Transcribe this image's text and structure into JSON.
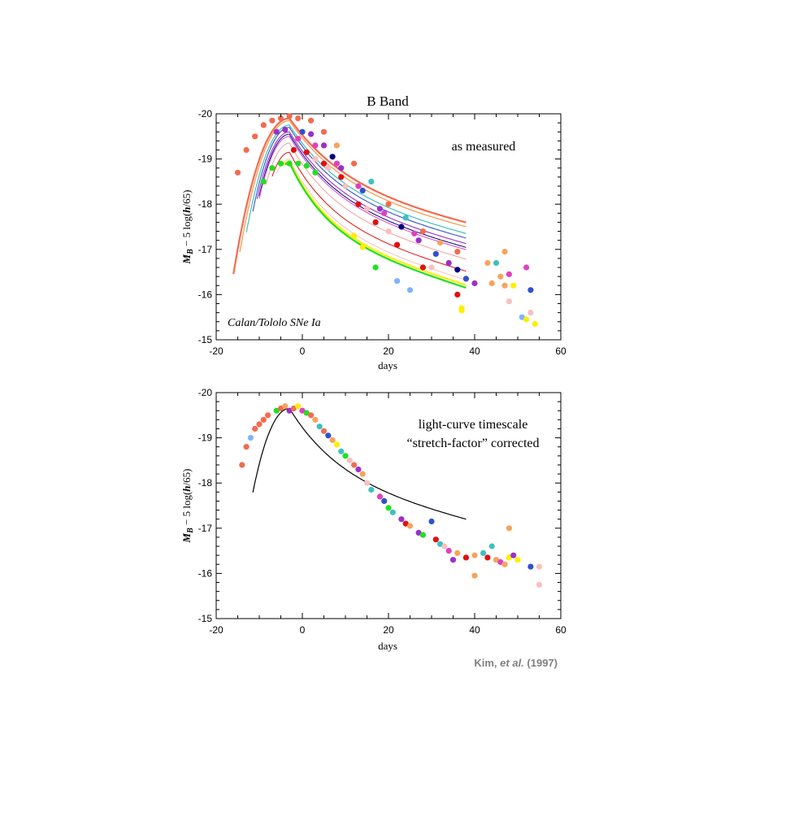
{
  "chart_data": [
    {
      "type": "scatter",
      "title": "B Band",
      "xlabel": "days",
      "ylabel": "M_B − 5 log(h/65)",
      "xlim": [
        -20,
        60
      ],
      "ylim": [
        -15,
        -20
      ],
      "x_ticks": [
        "-20",
        "0",
        "20",
        "40",
        "60"
      ],
      "y_ticks": [
        "-20",
        "-19",
        "-18",
        "-17",
        "-16",
        "-15"
      ],
      "annotations": [
        "as measured",
        "Calan/Tololo SNe Ia"
      ],
      "grid": false,
      "curves": [
        {
          "peak_day": -3,
          "peak_mag": -19.9,
          "stretch": 1.15,
          "color": "#f26b4f",
          "width": 2.2
        },
        {
          "peak_day": -3,
          "peak_mag": -19.85,
          "stretch": 1.1,
          "color": "#f7a35c",
          "width": 1.4
        },
        {
          "peak_day": -3,
          "peak_mag": -19.75,
          "stretch": 1.05,
          "color": "#40c0c0",
          "width": 1.2
        },
        {
          "peak_day": -3,
          "peak_mag": -19.7,
          "stretch": 1.0,
          "color": "#3050d0",
          "width": 1.1
        },
        {
          "peak_day": -3,
          "peak_mag": -19.6,
          "stretch": 0.98,
          "color": "#9a30c8",
          "width": 1.1
        },
        {
          "peak_day": -3,
          "peak_mag": -19.55,
          "stretch": 0.95,
          "color": "#000080",
          "width": 1.0
        },
        {
          "peak_day": -3,
          "peak_mag": -19.5,
          "stretch": 0.95,
          "color": "#e040c0",
          "width": 1.0
        },
        {
          "peak_day": -3,
          "peak_mag": -19.35,
          "stretch": 0.9,
          "color": "#f0a0a0",
          "width": 1.0
        },
        {
          "peak_day": -3,
          "peak_mag": -19.15,
          "stretch": 0.85,
          "color": "#e01010",
          "width": 1.0
        },
        {
          "peak_day": -3,
          "peak_mag": -19.0,
          "stretch": 0.82,
          "color": "#f8c0c0",
          "width": 1.0
        },
        {
          "peak_day": -3,
          "peak_mag": -18.95,
          "stretch": 0.78,
          "color": "#ffee00",
          "width": 2.2
        },
        {
          "peak_day": -3,
          "peak_mag": -18.92,
          "stretch": 0.76,
          "color": "#20e020",
          "width": 2.2
        }
      ],
      "points": [
        {
          "x": -15,
          "y": -18.7,
          "color": "#f26b4f"
        },
        {
          "x": -13,
          "y": -19.2,
          "color": "#f26b4f"
        },
        {
          "x": -11,
          "y": -19.5,
          "color": "#f26b4f"
        },
        {
          "x": -9,
          "y": -19.75,
          "color": "#f26b4f"
        },
        {
          "x": -7,
          "y": -19.85,
          "color": "#f26b4f"
        },
        {
          "x": -5,
          "y": -19.9,
          "color": "#f26b4f"
        },
        {
          "x": -3,
          "y": -19.95,
          "color": "#f26b4f"
        },
        {
          "x": -1,
          "y": -19.9,
          "color": "#f26b4f"
        },
        {
          "x": 2,
          "y": -19.85,
          "color": "#f26b4f"
        },
        {
          "x": 5,
          "y": -19.6,
          "color": "#f26b4f"
        },
        {
          "x": 8,
          "y": -19.3,
          "color": "#f7a35c"
        },
        {
          "x": 12,
          "y": -18.9,
          "color": "#f26b4f"
        },
        {
          "x": 16,
          "y": -18.5,
          "color": "#40c0c0"
        },
        {
          "x": 20,
          "y": -18.0,
          "color": "#f26b4f"
        },
        {
          "x": 24,
          "y": -17.7,
          "color": "#40c0c0"
        },
        {
          "x": 28,
          "y": -17.4,
          "color": "#f26b4f"
        },
        {
          "x": 32,
          "y": -17.15,
          "color": "#f7a35c"
        },
        {
          "x": 36,
          "y": -16.95,
          "color": "#f26b4f"
        },
        {
          "x": -6,
          "y": -19.6,
          "color": "#9a30c8"
        },
        {
          "x": -4,
          "y": -19.65,
          "color": "#9a30c8"
        },
        {
          "x": 0,
          "y": -19.6,
          "color": "#3050d0"
        },
        {
          "x": 2,
          "y": -19.55,
          "color": "#9a30c8"
        },
        {
          "x": 5,
          "y": -19.3,
          "color": "#9a30c8"
        },
        {
          "x": 7,
          "y": -19.05,
          "color": "#000080"
        },
        {
          "x": 9,
          "y": -18.8,
          "color": "#9a30c8"
        },
        {
          "x": 14,
          "y": -18.3,
          "color": "#3050d0"
        },
        {
          "x": 18,
          "y": -17.9,
          "color": "#9a30c8"
        },
        {
          "x": 23,
          "y": -17.5,
          "color": "#000080"
        },
        {
          "x": 27,
          "y": -17.2,
          "color": "#9a30c8"
        },
        {
          "x": 31,
          "y": -16.9,
          "color": "#3050d0"
        },
        {
          "x": 34,
          "y": -16.7,
          "color": "#9a30c8"
        },
        {
          "x": 36,
          "y": -16.55,
          "color": "#000080"
        },
        {
          "x": -1,
          "y": -19.45,
          "color": "#e040c0"
        },
        {
          "x": 3,
          "y": -19.3,
          "color": "#e040c0"
        },
        {
          "x": 8,
          "y": -18.9,
          "color": "#e040c0"
        },
        {
          "x": 13,
          "y": -18.4,
          "color": "#e040c0"
        },
        {
          "x": 19,
          "y": -17.8,
          "color": "#e040c0"
        },
        {
          "x": 26,
          "y": -17.35,
          "color": "#e040c0"
        },
        {
          "x": -2,
          "y": -19.2,
          "color": "#e01010"
        },
        {
          "x": 1,
          "y": -19.15,
          "color": "#e01010"
        },
        {
          "x": 5,
          "y": -18.9,
          "color": "#e01010"
        },
        {
          "x": 9,
          "y": -18.6,
          "color": "#e01010"
        },
        {
          "x": 13,
          "y": -18.0,
          "color": "#e01010"
        },
        {
          "x": 17,
          "y": -17.6,
          "color": "#e01010"
        },
        {
          "x": 22,
          "y": -17.1,
          "color": "#e01010"
        },
        {
          "x": 28,
          "y": -16.6,
          "color": "#e01010"
        },
        {
          "x": 3,
          "y": -19.0,
          "color": "#f8c0c0"
        },
        {
          "x": 6,
          "y": -18.8,
          "color": "#f8c0c0"
        },
        {
          "x": 10,
          "y": -18.4,
          "color": "#f8c0c0"
        },
        {
          "x": 15,
          "y": -17.9,
          "color": "#f8c0c0"
        },
        {
          "x": 20,
          "y": -17.4,
          "color": "#f8c0c0"
        },
        {
          "x": 30,
          "y": -16.6,
          "color": "#f8c0c0"
        },
        {
          "x": -9,
          "y": -18.5,
          "color": "#20e020"
        },
        {
          "x": -7,
          "y": -18.8,
          "color": "#20e020"
        },
        {
          "x": -5,
          "y": -18.9,
          "color": "#20e020"
        },
        {
          "x": -3,
          "y": -18.9,
          "color": "#20e020"
        },
        {
          "x": -1,
          "y": -18.9,
          "color": "#20e020"
        },
        {
          "x": 1,
          "y": -18.85,
          "color": "#20e020"
        },
        {
          "x": 3,
          "y": -18.7,
          "color": "#20e020"
        },
        {
          "x": 12,
          "y": -17.3,
          "color": "#ffee00"
        },
        {
          "x": 14,
          "y": -17.05,
          "color": "#ffee00"
        },
        {
          "x": 17,
          "y": -16.6,
          "color": "#20e020"
        },
        {
          "x": 22,
          "y": -16.3,
          "color": "#7fb3ff"
        },
        {
          "x": 25,
          "y": -16.1,
          "color": "#7fb3ff"
        },
        {
          "x": 36,
          "y": -16.0,
          "color": "#e01010"
        },
        {
          "x": 37,
          "y": -15.7,
          "color": "#ffee00"
        },
        {
          "x": 37,
          "y": -15.65,
          "color": "#ffee00"
        },
        {
          "x": 38,
          "y": -16.35,
          "color": "#3050d0"
        },
        {
          "x": 40,
          "y": -16.25,
          "color": "#9a30c8"
        },
        {
          "x": 43,
          "y": -16.7,
          "color": "#f7a35c"
        },
        {
          "x": 44,
          "y": -16.25,
          "color": "#f7a35c"
        },
        {
          "x": 45,
          "y": -16.7,
          "color": "#40c0c0"
        },
        {
          "x": 46,
          "y": -16.4,
          "color": "#f7a35c"
        },
        {
          "x": 47,
          "y": -16.2,
          "color": "#f7a35c"
        },
        {
          "x": 47,
          "y": -16.95,
          "color": "#f7a35c"
        },
        {
          "x": 48,
          "y": -16.45,
          "color": "#e040c0"
        },
        {
          "x": 48,
          "y": -15.85,
          "color": "#f8c0c0"
        },
        {
          "x": 49,
          "y": -16.2,
          "color": "#ffee00"
        },
        {
          "x": 51,
          "y": -15.5,
          "color": "#7fb3ff"
        },
        {
          "x": 52,
          "y": -16.6,
          "color": "#e040c0"
        },
        {
          "x": 52,
          "y": -15.45,
          "color": "#ffee00"
        },
        {
          "x": 53,
          "y": -16.1,
          "color": "#3050d0"
        },
        {
          "x": 53,
          "y": -15.6,
          "color": "#f8c0c0"
        },
        {
          "x": 54,
          "y": -15.35,
          "color": "#ffee00"
        }
      ]
    },
    {
      "type": "scatter",
      "title": "",
      "xlabel": "days",
      "ylabel": "M_B − 5 log(h/65)",
      "xlim": [
        -20,
        60
      ],
      "ylim": [
        -15,
        -20
      ],
      "x_ticks": [
        "-20",
        "0",
        "20",
        "40",
        "60"
      ],
      "y_ticks": [
        "-20",
        "-19",
        "-18",
        "-17",
        "-16",
        "-15"
      ],
      "annotations": [
        "light-curve timescale",
        "“stretch-factor” corrected"
      ],
      "grid": false,
      "curves": [
        {
          "peak_day": -3,
          "peak_mag": -19.65,
          "stretch": 1.0,
          "color": "#000000",
          "width": 1.2
        }
      ],
      "points": [
        {
          "x": -14,
          "y": -18.4,
          "color": "#f26b4f"
        },
        {
          "x": -13,
          "y": -18.8,
          "color": "#f26b4f"
        },
        {
          "x": -12,
          "y": -19.0,
          "color": "#7fb3ff"
        },
        {
          "x": -11,
          "y": -19.2,
          "color": "#f26b4f"
        },
        {
          "x": -10,
          "y": -19.3,
          "color": "#f26b4f"
        },
        {
          "x": -9,
          "y": -19.4,
          "color": "#f26b4f"
        },
        {
          "x": -8,
          "y": -19.5,
          "color": "#f26b4f"
        },
        {
          "x": -6,
          "y": -19.6,
          "color": "#20e020"
        },
        {
          "x": -5,
          "y": -19.65,
          "color": "#f26b4f"
        },
        {
          "x": -4,
          "y": -19.7,
          "color": "#f7a35c"
        },
        {
          "x": -3,
          "y": -19.6,
          "color": "#9a30c8"
        },
        {
          "x": -2,
          "y": -19.65,
          "color": "#f26b4f"
        },
        {
          "x": -1,
          "y": -19.7,
          "color": "#ffee00"
        },
        {
          "x": 0,
          "y": -19.6,
          "color": "#e040c0"
        },
        {
          "x": 1,
          "y": -19.55,
          "color": "#20e020"
        },
        {
          "x": 2,
          "y": -19.5,
          "color": "#f26b4f"
        },
        {
          "x": 3,
          "y": -19.4,
          "color": "#f7a35c"
        },
        {
          "x": 4,
          "y": -19.25,
          "color": "#40c0c0"
        },
        {
          "x": 5,
          "y": -19.15,
          "color": "#f26b4f"
        },
        {
          "x": 6,
          "y": -19.05,
          "color": "#3050d0"
        },
        {
          "x": 7,
          "y": -18.95,
          "color": "#f7a35c"
        },
        {
          "x": 8,
          "y": -18.85,
          "color": "#ffee00"
        },
        {
          "x": 9,
          "y": -18.7,
          "color": "#40c0c0"
        },
        {
          "x": 10,
          "y": -18.6,
          "color": "#20e020"
        },
        {
          "x": 11,
          "y": -18.5,
          "color": "#f8c0c0"
        },
        {
          "x": 12,
          "y": -18.4,
          "color": "#f26b4f"
        },
        {
          "x": 13,
          "y": -18.3,
          "color": "#9a30c8"
        },
        {
          "x": 14,
          "y": -18.2,
          "color": "#f7a35c"
        },
        {
          "x": 15,
          "y": -18.0,
          "color": "#f8c0c0"
        },
        {
          "x": 16,
          "y": -17.85,
          "color": "#40c0c0"
        },
        {
          "x": 18,
          "y": -17.7,
          "color": "#e040c0"
        },
        {
          "x": 19,
          "y": -17.6,
          "color": "#3050d0"
        },
        {
          "x": 20,
          "y": -17.45,
          "color": "#20e020"
        },
        {
          "x": 21,
          "y": -17.35,
          "color": "#40c0c0"
        },
        {
          "x": 23,
          "y": -17.2,
          "color": "#9a30c8"
        },
        {
          "x": 24,
          "y": -17.1,
          "color": "#e01010"
        },
        {
          "x": 25,
          "y": -17.05,
          "color": "#f7a35c"
        },
        {
          "x": 27,
          "y": -16.9,
          "color": "#9a30c8"
        },
        {
          "x": 28,
          "y": -16.85,
          "color": "#20e020"
        },
        {
          "x": 30,
          "y": -17.15,
          "color": "#3050d0"
        },
        {
          "x": 31,
          "y": -16.75,
          "color": "#e01010"
        },
        {
          "x": 32,
          "y": -16.65,
          "color": "#40c0c0"
        },
        {
          "x": 33,
          "y": -16.6,
          "color": "#f8c0c0"
        },
        {
          "x": 34,
          "y": -16.5,
          "color": "#e040c0"
        },
        {
          "x": 35,
          "y": -16.3,
          "color": "#9a30c8"
        },
        {
          "x": 36,
          "y": -16.45,
          "color": "#f7a35c"
        },
        {
          "x": 38,
          "y": -16.35,
          "color": "#e01010"
        },
        {
          "x": 40,
          "y": -16.4,
          "color": "#f7a35c"
        },
        {
          "x": 40,
          "y": -15.95,
          "color": "#f7a35c"
        },
        {
          "x": 42,
          "y": -16.45,
          "color": "#40c0c0"
        },
        {
          "x": 43,
          "y": -16.35,
          "color": "#e01010"
        },
        {
          "x": 44,
          "y": -16.6,
          "color": "#40c0c0"
        },
        {
          "x": 45,
          "y": -16.3,
          "color": "#f7a35c"
        },
        {
          "x": 46,
          "y": -16.25,
          "color": "#e040c0"
        },
        {
          "x": 47,
          "y": -16.2,
          "color": "#f7a35c"
        },
        {
          "x": 48,
          "y": -17.0,
          "color": "#f7a35c"
        },
        {
          "x": 48,
          "y": -16.35,
          "color": "#ffee00"
        },
        {
          "x": 49,
          "y": -16.4,
          "color": "#9a30c8"
        },
        {
          "x": 50,
          "y": -16.3,
          "color": "#ffee00"
        },
        {
          "x": 53,
          "y": -16.15,
          "color": "#3050d0"
        },
        {
          "x": 55,
          "y": -16.15,
          "color": "#f8c0c0"
        },
        {
          "x": 55,
          "y": -15.75,
          "color": "#f8c0c0"
        }
      ]
    }
  ],
  "credit": {
    "prefix": "Kim, ",
    "emph": "et al.",
    "suffix": " (1997)"
  }
}
